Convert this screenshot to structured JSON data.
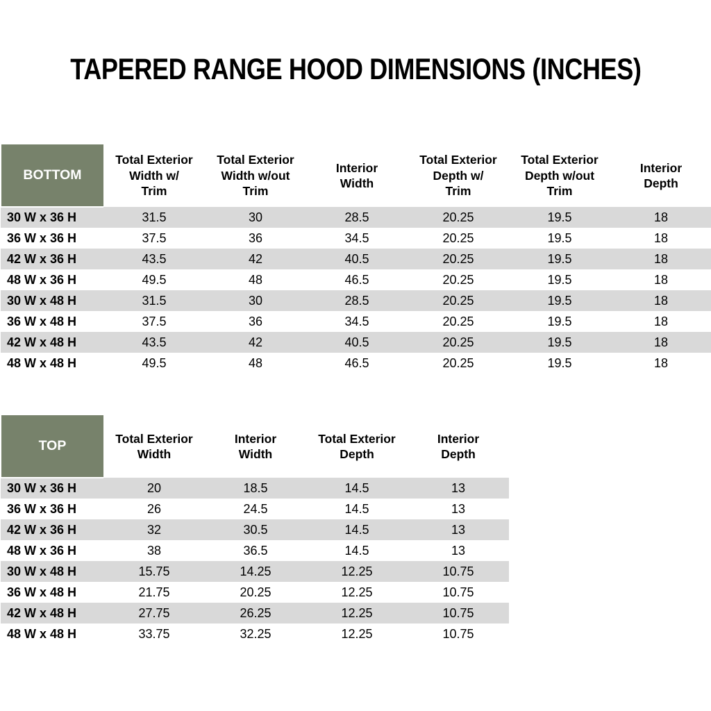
{
  "page": {
    "title": "TAPERED RANGE HOOD DIMENSIONS (INCHES)"
  },
  "colors": {
    "header_green": "#77826B",
    "stripe_gray": "#D9D9D9",
    "header_label_text": "#FFFFFF",
    "body_text": "#000000"
  },
  "bottom_table": {
    "label": "BOTTOM",
    "columns": [
      "Total Exterior\nWidth w/\nTrim",
      "Total Exterior\nWidth w/out\nTrim",
      "Interior\nWidth",
      "Total Exterior\nDepth w/\nTrim",
      "Total Exterior\nDepth w/out\nTrim",
      "Interior\nDepth"
    ],
    "rows": [
      {
        "size": "30 W x 36 H",
        "values": [
          "31.5",
          "30",
          "28.5",
          "20.25",
          "19.5",
          "18"
        ]
      },
      {
        "size": "36 W x 36 H",
        "values": [
          "37.5",
          "36",
          "34.5",
          "20.25",
          "19.5",
          "18"
        ]
      },
      {
        "size": "42 W x 36 H",
        "values": [
          "43.5",
          "42",
          "40.5",
          "20.25",
          "19.5",
          "18"
        ]
      },
      {
        "size": "48 W x 36 H",
        "values": [
          "49.5",
          "48",
          "46.5",
          "20.25",
          "19.5",
          "18"
        ]
      },
      {
        "size": "30 W x 48 H",
        "values": [
          "31.5",
          "30",
          "28.5",
          "20.25",
          "19.5",
          "18"
        ]
      },
      {
        "size": "36 W x 48 H",
        "values": [
          "37.5",
          "36",
          "34.5",
          "20.25",
          "19.5",
          "18"
        ]
      },
      {
        "size": "42 W x 48 H",
        "values": [
          "43.5",
          "42",
          "40.5",
          "20.25",
          "19.5",
          "18"
        ]
      },
      {
        "size": "48 W x 48 H",
        "values": [
          "49.5",
          "48",
          "46.5",
          "20.25",
          "19.5",
          "18"
        ]
      }
    ]
  },
  "top_table": {
    "label": "TOP",
    "columns": [
      "Total Exterior\nWidth",
      "Interior\nWidth",
      "Total Exterior\nDepth",
      "Interior\nDepth"
    ],
    "rows": [
      {
        "size": "30 W x 36 H",
        "values": [
          "20",
          "18.5",
          "14.5",
          "13"
        ]
      },
      {
        "size": "36 W x 36 H",
        "values": [
          "26",
          "24.5",
          "14.5",
          "13"
        ]
      },
      {
        "size": "42 W x 36 H",
        "values": [
          "32",
          "30.5",
          "14.5",
          "13"
        ]
      },
      {
        "size": "48 W x 36 H",
        "values": [
          "38",
          "36.5",
          "14.5",
          "13"
        ]
      },
      {
        "size": "30 W x 48 H",
        "values": [
          "15.75",
          "14.25",
          "12.25",
          "10.75"
        ]
      },
      {
        "size": "36 W x 48 H",
        "values": [
          "21.75",
          "20.25",
          "12.25",
          "10.75"
        ]
      },
      {
        "size": "42 W x 48 H",
        "values": [
          "27.75",
          "26.25",
          "12.25",
          "10.75"
        ]
      },
      {
        "size": "48 W x 48 H",
        "values": [
          "33.75",
          "32.25",
          "12.25",
          "10.75"
        ]
      }
    ]
  }
}
